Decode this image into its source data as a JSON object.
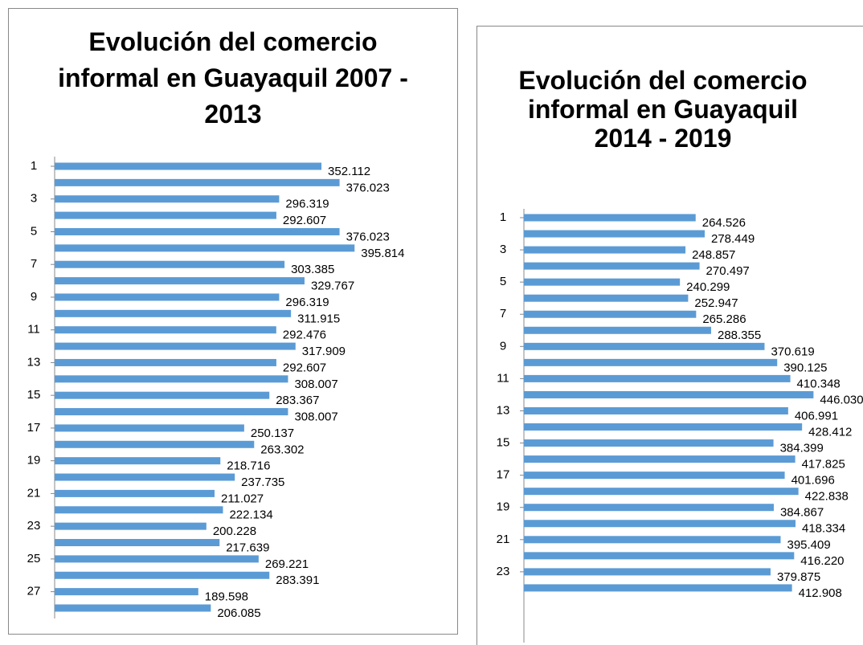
{
  "chart_data": [
    {
      "type": "hbar",
      "title": "Evolución del comercio informal en Guayaquil 2007 - 2013",
      "color": "#5b9bd5",
      "categories": [
        "1",
        null,
        "3",
        null,
        "5",
        null,
        "7",
        null,
        "9",
        null,
        "11",
        null,
        "13",
        null,
        "15",
        null,
        "17",
        null,
        "19",
        null,
        "21",
        null,
        "23",
        null,
        "25",
        null,
        "27",
        null
      ],
      "values": [
        352.112,
        376.023,
        296.319,
        292.607,
        376.023,
        395.814,
        303.385,
        329.767,
        296.319,
        311.915,
        292.476,
        317.909,
        292.607,
        308.007,
        283.367,
        308.007,
        250.137,
        263.302,
        218.716,
        237.735,
        211.027,
        222.134,
        200.228,
        217.639,
        269.221,
        283.391,
        189.598,
        206.085
      ]
    },
    {
      "type": "hbar",
      "title": "Evolución del comercio informal en Guayaquil 2014 - 2019",
      "color": "#5b9bd5",
      "categories": [
        "1",
        null,
        "3",
        null,
        "5",
        null,
        "7",
        null,
        "9",
        null,
        "11",
        null,
        "13",
        null,
        "15",
        null,
        "17",
        null,
        "19",
        null,
        "21",
        null,
        "23",
        null
      ],
      "values": [
        264.526,
        278.449,
        248.857,
        270.497,
        240.299,
        252.947,
        265.286,
        288.355,
        370.619,
        390.125,
        410.348,
        446.03,
        406.991,
        428.412,
        384.399,
        417.825,
        401.696,
        422.838,
        384.867,
        418.334,
        395.409,
        416.22,
        379.875,
        412.908
      ],
      "value_labels": [
        "264.526",
        "278.449",
        "248.857",
        "270.497",
        "240.299",
        "252.947",
        "265.286",
        "288.355",
        "370.619",
        "390.125",
        "410.348",
        "446.030",
        "406.991",
        "428.412",
        "384.399",
        "417.825",
        "401.696",
        "422.838",
        "384.867",
        "418.334",
        "395.409",
        "416.220",
        "379.875",
        "412.908"
      ]
    }
  ]
}
